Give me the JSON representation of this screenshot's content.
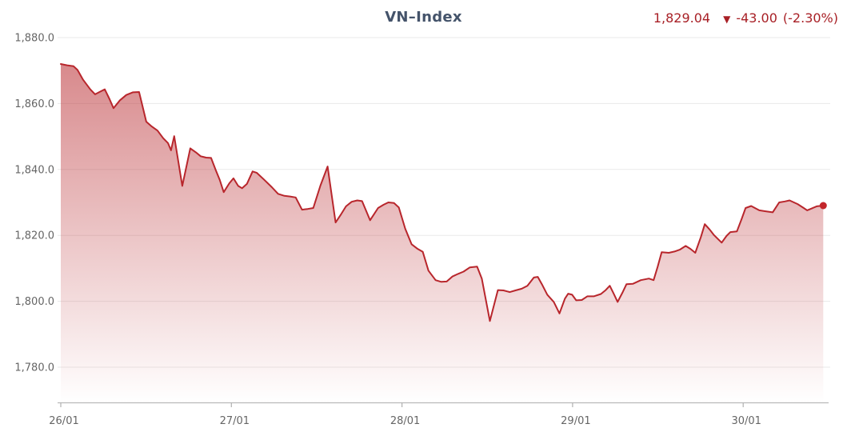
{
  "header": {
    "title": "VN–Index",
    "quote": {
      "last": "1,829.04",
      "arrow": "▼",
      "change": "-43.00",
      "change_pct": "(-2.30%)"
    }
  },
  "colors": {
    "title": "#44536a",
    "quote_red": "#a82026",
    "line": "#b8262c",
    "dot": "#c3262b",
    "fill_top": "#b8292e",
    "fill_top_opacity": 0.55,
    "grid": "#eaeaea",
    "axis_line": "#b9b9b9",
    "tick": "#b0b0b0",
    "label": "#656565",
    "background": "#ffffff"
  },
  "chart_data": {
    "type": "area",
    "title": "VN–Index",
    "xlabel": "",
    "ylabel": "",
    "grid": true,
    "legend": false,
    "x_unit": "trading-day index (0 = 26/01 tick, 1 day per tick, intraday fractions)",
    "x_ticks": {
      "labels": [
        "26/01",
        "27/01",
        "28/01",
        "29/01",
        "30/01"
      ],
      "positions": [
        0,
        1,
        2,
        3,
        4
      ]
    },
    "y_ticks": {
      "labels": [
        "1,880.0",
        "1,860.0",
        "1,840.0",
        "1,820.0",
        "1,800.0",
        "1,780.0"
      ],
      "values": [
        1880,
        1860,
        1840,
        1820,
        1800,
        1780
      ]
    },
    "xlim": [
      0,
      4.51
    ],
    "ylim": [
      1769,
      1880
    ],
    "last_value": 1829.04,
    "change": -43.0,
    "change_pct": -2.3,
    "last_point": {
      "x": 4.469,
      "y": 1829.04,
      "marker": "dot"
    },
    "points": [
      [
        0.0,
        1872.0
      ],
      [
        0.037,
        1871.6
      ],
      [
        0.075,
        1871.3
      ],
      [
        0.098,
        1870.2
      ],
      [
        0.131,
        1867.2
      ],
      [
        0.173,
        1864.3
      ],
      [
        0.201,
        1862.8
      ],
      [
        0.23,
        1863.6
      ],
      [
        0.258,
        1864.3
      ],
      [
        0.286,
        1861.3
      ],
      [
        0.309,
        1858.6
      ],
      [
        0.347,
        1861.0
      ],
      [
        0.384,
        1862.6
      ],
      [
        0.422,
        1863.4
      ],
      [
        0.459,
        1863.5
      ],
      [
        0.501,
        1854.5
      ],
      [
        0.534,
        1853.0
      ],
      [
        0.567,
        1851.8
      ],
      [
        0.6,
        1849.5
      ],
      [
        0.628,
        1848.0
      ],
      [
        0.646,
        1845.8
      ],
      [
        0.665,
        1850.1
      ],
      [
        0.712,
        1835.0
      ],
      [
        0.759,
        1846.4
      ],
      [
        0.792,
        1845.2
      ],
      [
        0.82,
        1844.0
      ],
      [
        0.852,
        1843.6
      ],
      [
        0.881,
        1843.5
      ],
      [
        0.909,
        1839.7
      ],
      [
        0.932,
        1836.8
      ],
      [
        0.955,
        1833.1
      ],
      [
        0.988,
        1835.8
      ],
      [
        1.012,
        1837.3
      ],
      [
        1.04,
        1835.0
      ],
      [
        1.063,
        1834.3
      ],
      [
        1.091,
        1835.6
      ],
      [
        1.124,
        1839.4
      ],
      [
        1.148,
        1839.0
      ],
      [
        1.19,
        1837.0
      ],
      [
        1.237,
        1834.6
      ],
      [
        1.274,
        1832.6
      ],
      [
        1.311,
        1832.0
      ],
      [
        1.344,
        1831.8
      ],
      [
        1.377,
        1831.5
      ],
      [
        1.414,
        1827.8
      ],
      [
        1.447,
        1828.0
      ],
      [
        1.48,
        1828.3
      ],
      [
        1.522,
        1835.1
      ],
      [
        1.564,
        1840.9
      ],
      [
        1.611,
        1823.9
      ],
      [
        1.644,
        1826.5
      ],
      [
        1.672,
        1828.8
      ],
      [
        1.705,
        1830.2
      ],
      [
        1.738,
        1830.6
      ],
      [
        1.766,
        1830.4
      ],
      [
        1.813,
        1824.6
      ],
      [
        1.86,
        1828.3
      ],
      [
        1.892,
        1829.3
      ],
      [
        1.92,
        1830.0
      ],
      [
        1.953,
        1829.8
      ],
      [
        1.981,
        1828.5
      ],
      [
        2.019,
        1822.0
      ],
      [
        2.056,
        1817.3
      ],
      [
        2.089,
        1816.0
      ],
      [
        2.122,
        1815.0
      ],
      [
        2.155,
        1809.3
      ],
      [
        2.197,
        1806.4
      ],
      [
        2.23,
        1805.9
      ],
      [
        2.262,
        1806.0
      ],
      [
        2.295,
        1807.5
      ],
      [
        2.328,
        1808.3
      ],
      [
        2.361,
        1809.0
      ],
      [
        2.398,
        1810.3
      ],
      [
        2.44,
        1810.5
      ],
      [
        2.468,
        1806.9
      ],
      [
        2.515,
        1794.0
      ],
      [
        2.562,
        1803.4
      ],
      [
        2.595,
        1803.3
      ],
      [
        2.632,
        1802.8
      ],
      [
        2.665,
        1803.3
      ],
      [
        2.702,
        1803.8
      ],
      [
        2.735,
        1804.7
      ],
      [
        2.773,
        1807.2
      ],
      [
        2.796,
        1807.4
      ],
      [
        2.82,
        1805.2
      ],
      [
        2.852,
        1802.0
      ],
      [
        2.89,
        1799.8
      ],
      [
        2.923,
        1796.3
      ],
      [
        2.955,
        1800.8
      ],
      [
        2.974,
        1802.3
      ],
      [
        2.997,
        1802.0
      ],
      [
        3.021,
        1800.3
      ],
      [
        3.054,
        1800.4
      ],
      [
        3.086,
        1801.5
      ],
      [
        3.124,
        1801.5
      ],
      [
        3.166,
        1802.2
      ],
      [
        3.194,
        1803.4
      ],
      [
        3.218,
        1804.7
      ],
      [
        3.241,
        1802.3
      ],
      [
        3.264,
        1799.8
      ],
      [
        3.292,
        1802.6
      ],
      [
        3.316,
        1805.2
      ],
      [
        3.353,
        1805.3
      ],
      [
        3.4,
        1806.4
      ],
      [
        3.447,
        1806.9
      ],
      [
        3.475,
        1806.4
      ],
      [
        3.499,
        1810.5
      ],
      [
        3.522,
        1814.9
      ],
      [
        3.564,
        1814.7
      ],
      [
        3.597,
        1815.1
      ],
      [
        3.63,
        1815.7
      ],
      [
        3.663,
        1816.8
      ],
      [
        3.691,
        1815.9
      ],
      [
        3.719,
        1814.7
      ],
      [
        3.752,
        1819.5
      ],
      [
        3.775,
        1823.4
      ],
      [
        3.803,
        1821.8
      ],
      [
        3.827,
        1820.2
      ],
      [
        3.85,
        1819.0
      ],
      [
        3.874,
        1817.8
      ],
      [
        3.902,
        1819.8
      ],
      [
        3.925,
        1821.0
      ],
      [
        3.963,
        1821.2
      ],
      [
        3.991,
        1825.0
      ],
      [
        4.014,
        1828.3
      ],
      [
        4.047,
        1828.9
      ],
      [
        4.094,
        1827.6
      ],
      [
        4.131,
        1827.3
      ],
      [
        4.173,
        1827.0
      ],
      [
        4.211,
        1830.0
      ],
      [
        4.244,
        1830.3
      ],
      [
        4.272,
        1830.6
      ],
      [
        4.319,
        1829.5
      ],
      [
        4.352,
        1828.4
      ],
      [
        4.375,
        1827.6
      ],
      [
        4.403,
        1828.2
      ],
      [
        4.431,
        1828.8
      ],
      [
        4.469,
        1829.04
      ]
    ]
  }
}
